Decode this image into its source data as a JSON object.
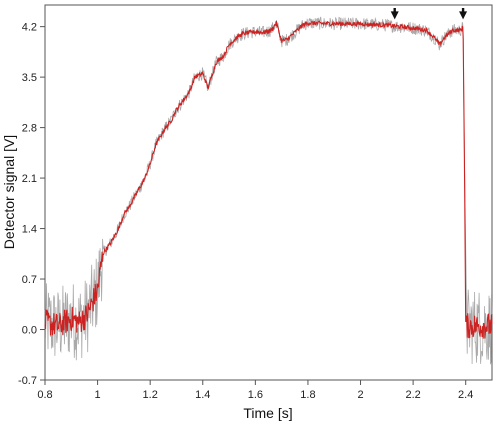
{
  "chart_data": {
    "type": "line",
    "xlabel": "Time [s]",
    "ylabel": "Detector signal [V]",
    "xlim": [
      0.8,
      2.5
    ],
    "ylim": [
      -0.7,
      4.5
    ],
    "x_ticks": [
      "0.8",
      "1",
      "1.2",
      "1.4",
      "1.6",
      "1.8",
      "2",
      "2.2",
      "2.4"
    ],
    "y_ticks": [
      "-0.7",
      "0.0",
      "0.7",
      "1.4",
      "2.1",
      "2.8",
      "3.5",
      "4.2"
    ],
    "grid": false,
    "legend": "none",
    "series": [
      {
        "color": "#cc2222",
        "noise_color": "#9a9a9a",
        "x": [
          0.8,
          0.85,
          0.9,
          0.93,
          0.96,
          1.0,
          1.02,
          1.05,
          1.08,
          1.1,
          1.12,
          1.15,
          1.18,
          1.2,
          1.22,
          1.25,
          1.28,
          1.3,
          1.33,
          1.35,
          1.37,
          1.4,
          1.42,
          1.45,
          1.48,
          1.5,
          1.53,
          1.55,
          1.58,
          1.6,
          1.63,
          1.66,
          1.68,
          1.7,
          1.72,
          1.75,
          1.78,
          1.8,
          1.9,
          2.0,
          2.1,
          2.2,
          2.25,
          2.28,
          2.3,
          2.32,
          2.35,
          2.38,
          2.39,
          2.395,
          2.4,
          2.45,
          2.5
        ],
        "y": [
          0.1,
          0.05,
          0.15,
          0.1,
          0.2,
          0.55,
          1.05,
          1.2,
          1.4,
          1.6,
          1.7,
          1.9,
          2.1,
          2.3,
          2.55,
          2.75,
          2.9,
          3.05,
          3.2,
          3.3,
          3.5,
          3.55,
          3.35,
          3.7,
          3.8,
          3.95,
          4.05,
          4.1,
          4.12,
          4.13,
          4.12,
          4.15,
          4.25,
          4.0,
          4.02,
          4.12,
          4.22,
          4.25,
          4.24,
          4.24,
          4.22,
          4.18,
          4.15,
          4.05,
          3.95,
          4.05,
          4.15,
          4.15,
          4.2,
          2.4,
          0.05,
          0.05,
          0.05
        ]
      }
    ],
    "arrows": [
      {
        "x": 2.13,
        "y": 4.45
      },
      {
        "x": 2.39,
        "y": 4.45
      }
    ]
  }
}
